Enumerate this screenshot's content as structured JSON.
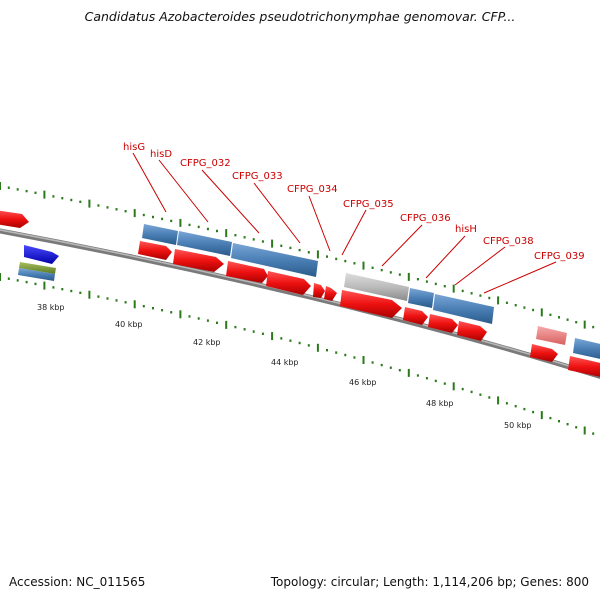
{
  "title": "Candidatus Azobacteroides pseudotrichonymphae genomovar. CFP...",
  "accession": {
    "label": "Accession:",
    "value": "NC_011565"
  },
  "summary": {
    "topology_label": "Topology:",
    "topology": "circular",
    "length_label": "Length:",
    "length": "1,114,206 bp",
    "genes_label": "Genes:",
    "genes": "800"
  },
  "colors": {
    "forward": "#ee1111",
    "reverse": "#4a7fb5",
    "other": "#bbbbbb",
    "faded": "#ee8888",
    "blue": "#1010dd",
    "olive": "#7a9a30",
    "label": "#cc0000",
    "tick": "#2a7a1a",
    "backbone": "#7a7a7a"
  },
  "kbp_ticks": [
    "38 kbp",
    "40 kbp",
    "42 kbp",
    "44 kbp",
    "46 kbp",
    "48 kbp",
    "50 kbp"
  ],
  "gene_labels": [
    "hisG",
    "hisD",
    "CFPG_032",
    "CFPG_033",
    "CFPG_034",
    "CFPG_035",
    "CFPG_036",
    "hisH",
    "CFPG_038",
    "CFPG_039"
  ]
}
